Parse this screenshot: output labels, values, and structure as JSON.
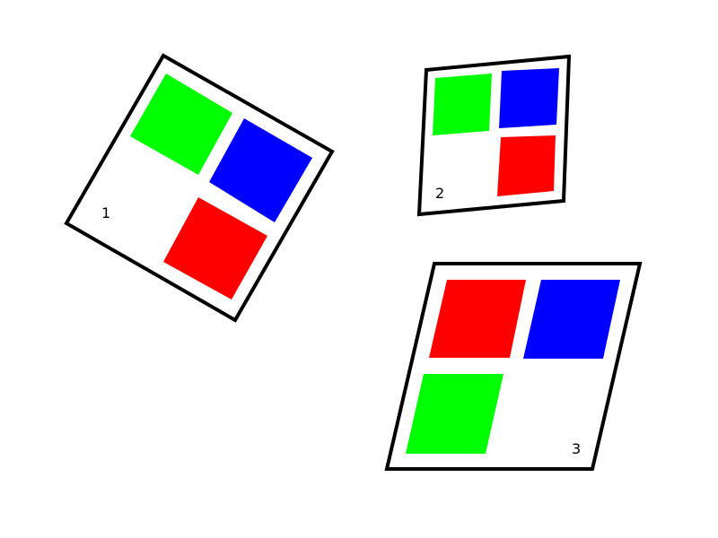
{
  "colors": {
    "background": "#ffffff",
    "outline": "#000000",
    "green": "#00ff00",
    "blue": "#0000ff",
    "red": "#ff0000"
  },
  "panels": [
    {
      "label": "1",
      "tiles": [
        "green",
        "blue",
        "red"
      ]
    },
    {
      "label": "2",
      "tiles": [
        "green",
        "blue",
        "red"
      ]
    },
    {
      "label": "3",
      "tiles": [
        "red",
        "blue",
        "green"
      ]
    }
  ]
}
